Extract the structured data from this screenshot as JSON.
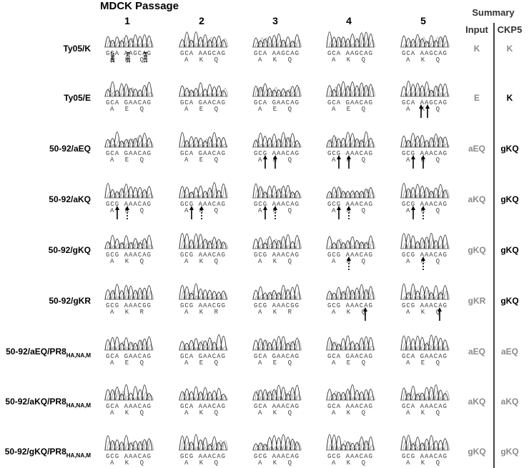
{
  "header": {
    "title": "MDCK Passage",
    "passages": [
      "1",
      "2",
      "3",
      "4",
      "5"
    ],
    "summary": "Summary",
    "input": "Input",
    "ckp5": "CKP5"
  },
  "positions": [
    "1867",
    "1879",
    "1884"
  ],
  "rows": [
    {
      "label": "Ty05/K",
      "cells": [
        {
          "nt": "GCA AAGCAG",
          "aa": "A K Q"
        },
        {
          "nt": "GCA AAGCAG",
          "aa": "A K Q"
        },
        {
          "nt": "GCA AAGCAG",
          "aa": "A K Q"
        },
        {
          "nt": "GCA AAGCAG",
          "aa": "A K Q"
        },
        {
          "nt": "GCA AAGCAG",
          "aa": "A K Q"
        }
      ],
      "input": "K",
      "ckp5": "K",
      "ckp5_color": "#8a8a8a"
    },
    {
      "label": "Ty05/E",
      "cells": [
        {
          "nt": "GCA GAACAG",
          "aa": "A E Q"
        },
        {
          "nt": "GCA GAACAG",
          "aa": "A E Q"
        },
        {
          "nt": "GCA GAACAG",
          "aa": "A E Q"
        },
        {
          "nt": "GCA GAACAG",
          "aa": "A E Q"
        },
        {
          "nt": "GCA AAGCAG",
          "aa": "A K Q"
        }
      ],
      "input": "E",
      "ckp5": "K",
      "ckp5_color": "#000000"
    },
    {
      "label": "50-92/aEQ",
      "cells": [
        {
          "nt": "GCA GAACAG",
          "aa": "A E Q"
        },
        {
          "nt": "GCA GAACAG",
          "aa": "A E Q"
        },
        {
          "nt": "GCG AAACAG",
          "aa": "A K Q"
        },
        {
          "nt": "GCG AAACAG",
          "aa": "A K Q"
        },
        {
          "nt": "GCG AAACAG",
          "aa": "A K Q"
        }
      ],
      "input": "aEQ",
      "ckp5": "gKQ",
      "ckp5_color": "#000000"
    },
    {
      "label": "50-92/aKQ",
      "cells": [
        {
          "nt": "GCG AAACAG",
          "aa": "A K Q"
        },
        {
          "nt": "GCG AAACAG",
          "aa": "A K Q"
        },
        {
          "nt": "GCG AAACAG",
          "aa": "A K Q"
        },
        {
          "nt": "GCG AAACAG",
          "aa": "A K Q"
        },
        {
          "nt": "GCG AAACAG",
          "aa": "A K Q"
        }
      ],
      "input": "aKQ",
      "ckp5": "gKQ",
      "ckp5_color": "#000000"
    },
    {
      "label": "50-92/gKQ",
      "cells": [
        {
          "nt": "GCG AAACAG",
          "aa": "A K Q"
        },
        {
          "nt": "GCG AAACAG",
          "aa": "A K Q"
        },
        {
          "nt": "GCG AAACAG",
          "aa": "A K Q"
        },
        {
          "nt": "GCG AAACAG",
          "aa": "A K Q"
        },
        {
          "nt": "GCG AAACAG",
          "aa": "A K Q"
        }
      ],
      "input": "gKQ",
      "ckp5": "gKQ",
      "ckp5_color": "#000000"
    },
    {
      "label": "50-92/gKR",
      "cells": [
        {
          "nt": "GCG AAACGG",
          "aa": "A K R"
        },
        {
          "nt": "GCG AAACGG",
          "aa": "A K R"
        },
        {
          "nt": "GCG AAACGG",
          "aa": "A K R"
        },
        {
          "nt": "GCG AAACAG",
          "aa": "A K Q"
        },
        {
          "nt": "GCG AAACAG",
          "aa": "A K Q"
        }
      ],
      "input": "gKR",
      "ckp5": "gKQ",
      "ckp5_color": "#000000"
    },
    {
      "label": "50-92/aEQ/PR8",
      "label_sub": "HA,NA,M",
      "cells": [
        {
          "nt": "GCA GAACAG",
          "aa": "A E Q"
        },
        {
          "nt": "GCA GAACAG",
          "aa": "A E Q"
        },
        {
          "nt": "GCA GAACAG",
          "aa": "A E Q"
        },
        {
          "nt": "GCA GAACAG",
          "aa": "A E Q"
        },
        {
          "nt": "GCA GAACAG",
          "aa": "A E Q"
        }
      ],
      "input": "aEQ",
      "ckp5": "aEQ",
      "ckp5_color": "#8a8a8a"
    },
    {
      "label": "50-92/aKQ/PR8",
      "label_sub": "HA,NA,M",
      "cells": [
        {
          "nt": "GCA AAACAG",
          "aa": "A K Q"
        },
        {
          "nt": "GCA AAACAG",
          "aa": "A K Q"
        },
        {
          "nt": "GCA AAACAG",
          "aa": "A K Q"
        },
        {
          "nt": "GCA AAACAG",
          "aa": "A K Q"
        },
        {
          "nt": "GCA AAACAG",
          "aa": "A K Q"
        }
      ],
      "input": "aKQ",
      "ckp5": "aKQ",
      "ckp5_color": "#8a8a8a"
    },
    {
      "label": "50-92/gKQ/PR8",
      "label_sub": "HA,NA,M",
      "cells": [
        {
          "nt": "GCG AAACAG",
          "aa": "A K Q"
        },
        {
          "nt": "GCG AAACAG",
          "aa": "A K Q"
        },
        {
          "nt": "GCG AAACAG",
          "aa": "A K Q"
        },
        {
          "nt": "GCG AAACAG",
          "aa": "A K Q"
        },
        {
          "nt": "GCG AAACAG",
          "aa": "A K Q"
        }
      ],
      "input": "gKQ",
      "ckp5": "gKQ",
      "ckp5_color": "#8a8a8a"
    }
  ]
}
